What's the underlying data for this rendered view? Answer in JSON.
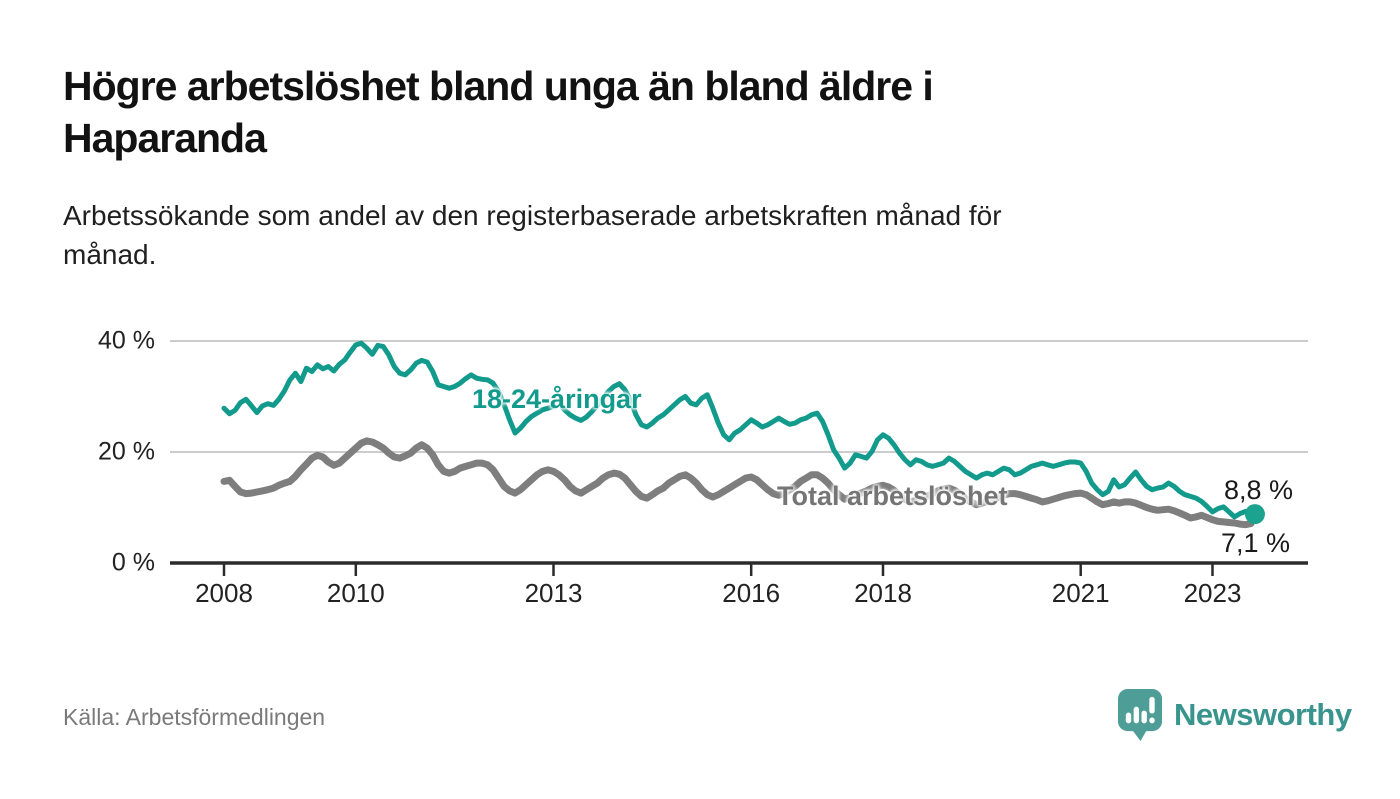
{
  "header": {
    "title": "Högre arbetslöshet bland unga än bland äldre i\nHaparanda",
    "subtitle": "Arbetssökande som andel av den registerbaserade arbetskraften månad för\nmånad."
  },
  "footer": {
    "source": "Källa: Arbetsförmedlingen",
    "logo_text": "Newsworthy",
    "logo_icon": "newsworthy-speech-bubble-bar-chart-icon"
  },
  "colors": {
    "youth_line": "#129A8C",
    "total_line": "#7E7E7E",
    "youth_label": "#129A8C",
    "total_label": "#757575",
    "grid": "#CCCCCC",
    "axis": "#2B2B2B",
    "end_dot": "#1BA390",
    "logo": "#4F9D97",
    "logo_text": "#38948D"
  },
  "chart_data": {
    "type": "line",
    "title": "Högre arbetslöshet bland unga än bland äldre i Haparanda",
    "xlabel": "",
    "ylabel": "",
    "x_start_year": 2008,
    "x_months_per_step": 1,
    "x_end": "2023-08",
    "xticks": [
      2008,
      2010,
      2013,
      2016,
      2018,
      2021,
      2023
    ],
    "xtick_labels": [
      "2008",
      "2010",
      "2013",
      "2016",
      "2018",
      "2021",
      "2023"
    ],
    "yticks": [
      0,
      20,
      40
    ],
    "ytick_labels": [
      "0 %",
      "20 %",
      "40 %"
    ],
    "ylim": [
      0,
      40
    ],
    "grid": "horizontal-only",
    "legend_position": "inline-labels",
    "series": [
      {
        "name": "18-24-åringar",
        "end_label": "8,8 %",
        "end_value": 8.8,
        "has_end_dot": true,
        "values": [
          27.9,
          26.9,
          27.5,
          28.9,
          29.5,
          28.3,
          27.1,
          28.3,
          28.7,
          28.4,
          29.5,
          31.0,
          33.0,
          34.2,
          32.7,
          35.1,
          34.5,
          35.7,
          35.0,
          35.4,
          34.6,
          35.8,
          36.6,
          38.0,
          39.3,
          39.6,
          38.7,
          37.6,
          39.2,
          39.0,
          37.5,
          35.4,
          34.2,
          33.9,
          34.8,
          36.0,
          36.5,
          36.2,
          34.5,
          32.1,
          31.8,
          31.5,
          31.8,
          32.4,
          33.2,
          33.9,
          33.3,
          33.1,
          33.0,
          32.4,
          30.9,
          28.5,
          25.8,
          23.4,
          24.3,
          25.5,
          26.4,
          27.0,
          27.6,
          27.9,
          28.2,
          28.8,
          27.6,
          26.7,
          26.1,
          25.7,
          26.3,
          27.3,
          28.4,
          29.7,
          30.9,
          31.8,
          32.3,
          31.2,
          29.4,
          26.7,
          24.9,
          24.5,
          25.2,
          26.1,
          26.7,
          27.6,
          28.5,
          29.4,
          30.0,
          28.8,
          28.5,
          29.7,
          30.3,
          27.9,
          25.2,
          23.1,
          22.2,
          23.4,
          24.0,
          24.9,
          25.8,
          25.2,
          24.5,
          24.9,
          25.5,
          26.1,
          25.5,
          25.0,
          25.2,
          25.8,
          26.1,
          26.7,
          27.0,
          25.5,
          23.1,
          20.4,
          18.9,
          17.1,
          18.0,
          19.5,
          19.2,
          18.9,
          20.1,
          22.2,
          23.1,
          22.5,
          21.3,
          19.8,
          18.6,
          17.7,
          18.6,
          18.3,
          17.7,
          17.4,
          17.7,
          18.0,
          18.9,
          18.3,
          17.4,
          16.5,
          15.9,
          15.3,
          15.9,
          16.2,
          15.9,
          16.5,
          17.1,
          16.8,
          15.9,
          16.2,
          16.8,
          17.4,
          17.7,
          18.0,
          17.7,
          17.4,
          17.7,
          18.0,
          18.2,
          18.2,
          18.0,
          16.5,
          14.4,
          13.2,
          12.3,
          12.9,
          15.0,
          13.7,
          14.1,
          15.3,
          16.4,
          15.0,
          13.8,
          13.2,
          13.5,
          13.7,
          14.4,
          13.8,
          12.9,
          12.3,
          12.0,
          11.7,
          11.1,
          10.2,
          9.2,
          9.8,
          10.1,
          9.2,
          8.3,
          8.9,
          9.3,
          8.8
        ]
      },
      {
        "name": "Total arbetslöshet",
        "end_label": "7,1 %",
        "end_value": 7.1,
        "has_end_dot": false,
        "values": [
          14.7,
          14.9,
          13.8,
          12.8,
          12.5,
          12.6,
          12.8,
          13.0,
          13.2,
          13.5,
          14.0,
          14.4,
          14.7,
          15.6,
          16.8,
          17.8,
          18.9,
          19.4,
          19.1,
          18.2,
          17.6,
          18.0,
          18.9,
          19.8,
          20.7,
          21.6,
          22.0,
          21.8,
          21.3,
          20.7,
          19.8,
          19.1,
          18.9,
          19.3,
          19.8,
          20.7,
          21.3,
          20.7,
          19.5,
          17.7,
          16.5,
          16.2,
          16.5,
          17.1,
          17.4,
          17.7,
          18.0,
          18.0,
          17.7,
          16.8,
          15.3,
          13.8,
          13.0,
          12.6,
          13.2,
          14.1,
          15.0,
          15.9,
          16.5,
          16.8,
          16.5,
          15.9,
          15.0,
          13.8,
          13.0,
          12.6,
          13.2,
          13.8,
          14.4,
          15.3,
          15.9,
          16.2,
          16.0,
          15.3,
          14.1,
          12.9,
          12.0,
          11.7,
          12.3,
          13.0,
          13.5,
          14.4,
          15.0,
          15.6,
          15.9,
          15.3,
          14.4,
          13.2,
          12.3,
          11.9,
          12.3,
          12.9,
          13.5,
          14.1,
          14.7,
          15.3,
          15.5,
          15.0,
          14.1,
          13.2,
          12.5,
          12.2,
          12.6,
          13.2,
          13.8,
          14.7,
          15.3,
          15.9,
          15.9,
          15.3,
          14.4,
          13.2,
          12.3,
          11.5,
          11.8,
          12.3,
          12.6,
          13.0,
          13.5,
          13.8,
          14.0,
          13.7,
          13.1,
          12.2,
          11.5,
          11.0,
          11.3,
          11.7,
          12.0,
          12.5,
          13.0,
          13.3,
          13.5,
          13.1,
          12.5,
          11.6,
          11.0,
          10.5,
          10.8,
          11.1,
          11.4,
          11.8,
          12.2,
          12.5,
          12.5,
          12.3,
          12.0,
          11.7,
          11.4,
          11.0,
          11.2,
          11.5,
          11.8,
          12.1,
          12.3,
          12.5,
          12.6,
          12.3,
          11.7,
          11.0,
          10.5,
          10.7,
          11.0,
          10.8,
          11.0,
          11.0,
          10.8,
          10.4,
          10.0,
          9.7,
          9.5,
          9.6,
          9.7,
          9.4,
          9.0,
          8.6,
          8.1,
          8.3,
          8.6,
          8.2,
          7.8,
          7.5,
          7.4,
          7.3,
          7.2,
          7.0,
          6.9,
          7.1
        ]
      }
    ]
  }
}
